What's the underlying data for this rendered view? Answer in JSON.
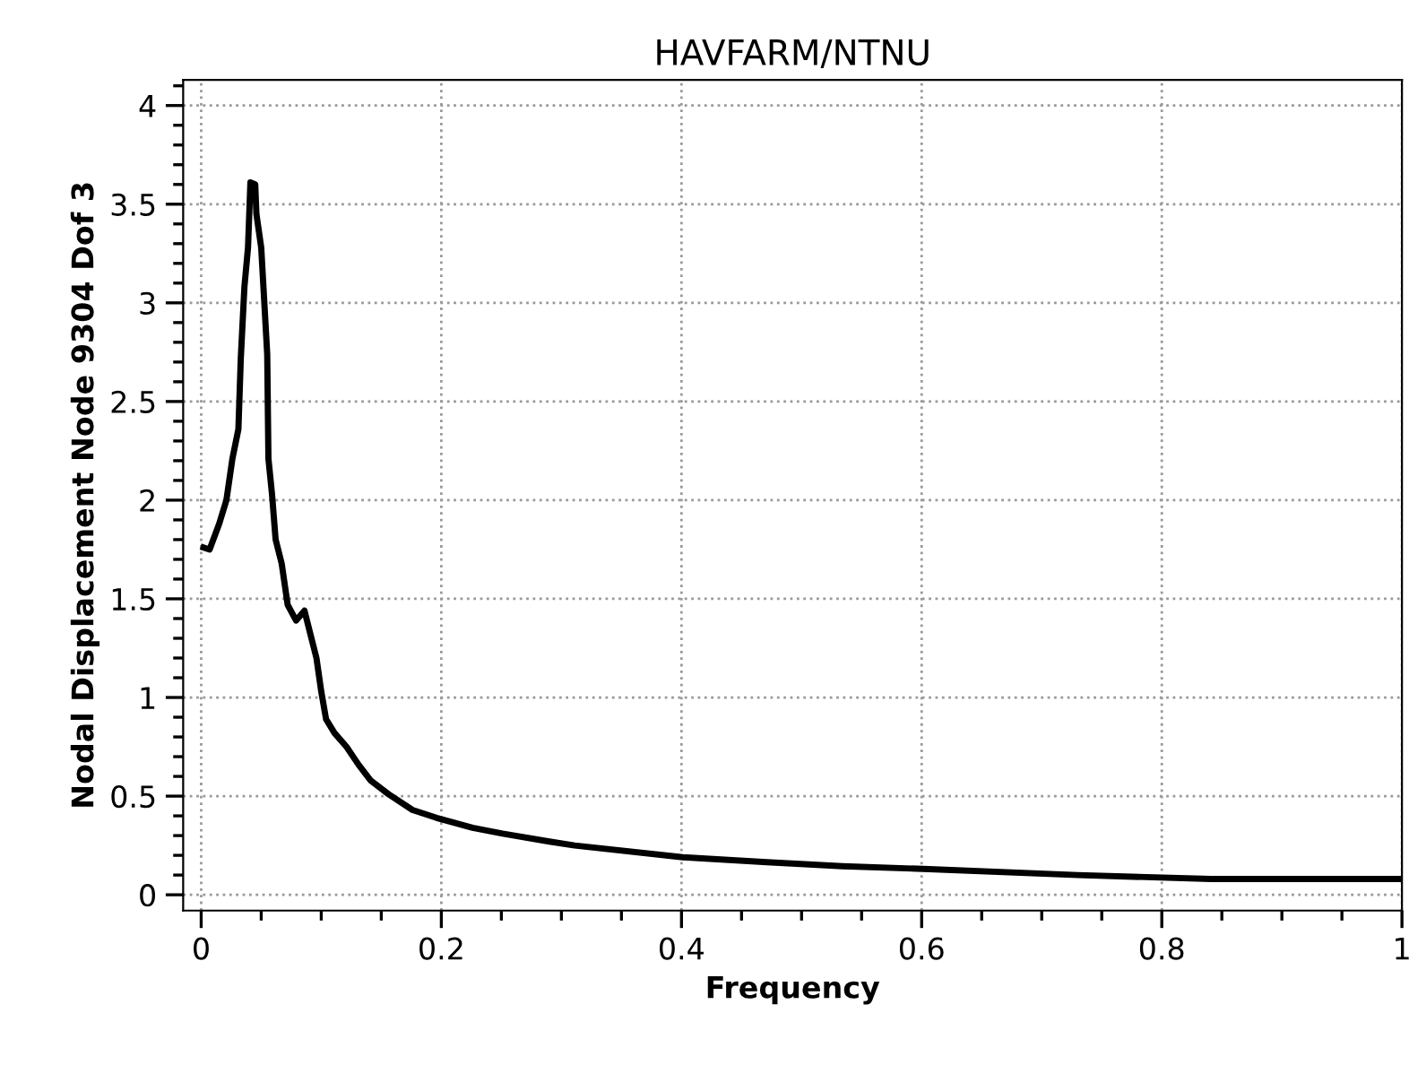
{
  "chart_data": {
    "type": "line",
    "title": "HAVFARM/NTNU",
    "xlabel": "Frequency",
    "ylabel": "Nodal Displacement Node 9304 Dof 3",
    "x": [
      0.002,
      0.007,
      0.015,
      0.021,
      0.026,
      0.031,
      0.033,
      0.036,
      0.039,
      0.041,
      0.045,
      0.046,
      0.05,
      0.055,
      0.056,
      0.059,
      0.062,
      0.067,
      0.072,
      0.079,
      0.086,
      0.091,
      0.096,
      0.1,
      0.104,
      0.111,
      0.121,
      0.131,
      0.141,
      0.156,
      0.176,
      0.196,
      0.226,
      0.251,
      0.29,
      0.311,
      0.401,
      0.471,
      0.534,
      0.606,
      0.73,
      0.841,
      1.0
    ],
    "series": [
      {
        "color": "#000000",
        "values": [
          1.76,
          1.75,
          1.88,
          2.0,
          2.21,
          2.36,
          2.72,
          3.08,
          3.28,
          3.61,
          3.6,
          3.45,
          3.28,
          2.74,
          2.21,
          2.03,
          1.8,
          1.68,
          1.47,
          1.39,
          1.44,
          1.32,
          1.2,
          1.03,
          0.89,
          0.82,
          0.75,
          0.66,
          0.58,
          0.51,
          0.43,
          0.39,
          0.34,
          0.31,
          0.27,
          0.25,
          0.19,
          0.165,
          0.145,
          0.13,
          0.1,
          0.08,
          0.08
        ]
      }
    ],
    "xlim": [
      -0.015,
      1.0
    ],
    "xticks": [
      0,
      0.2,
      0.4,
      0.6,
      0.8,
      1
    ],
    "ylim": [
      -0.08,
      4.13
    ],
    "yticks": [
      0,
      0.5,
      1,
      1.5,
      2,
      2.5,
      3,
      3.5,
      4
    ],
    "grid": true,
    "marker": "none",
    "line_style": "solid"
  }
}
